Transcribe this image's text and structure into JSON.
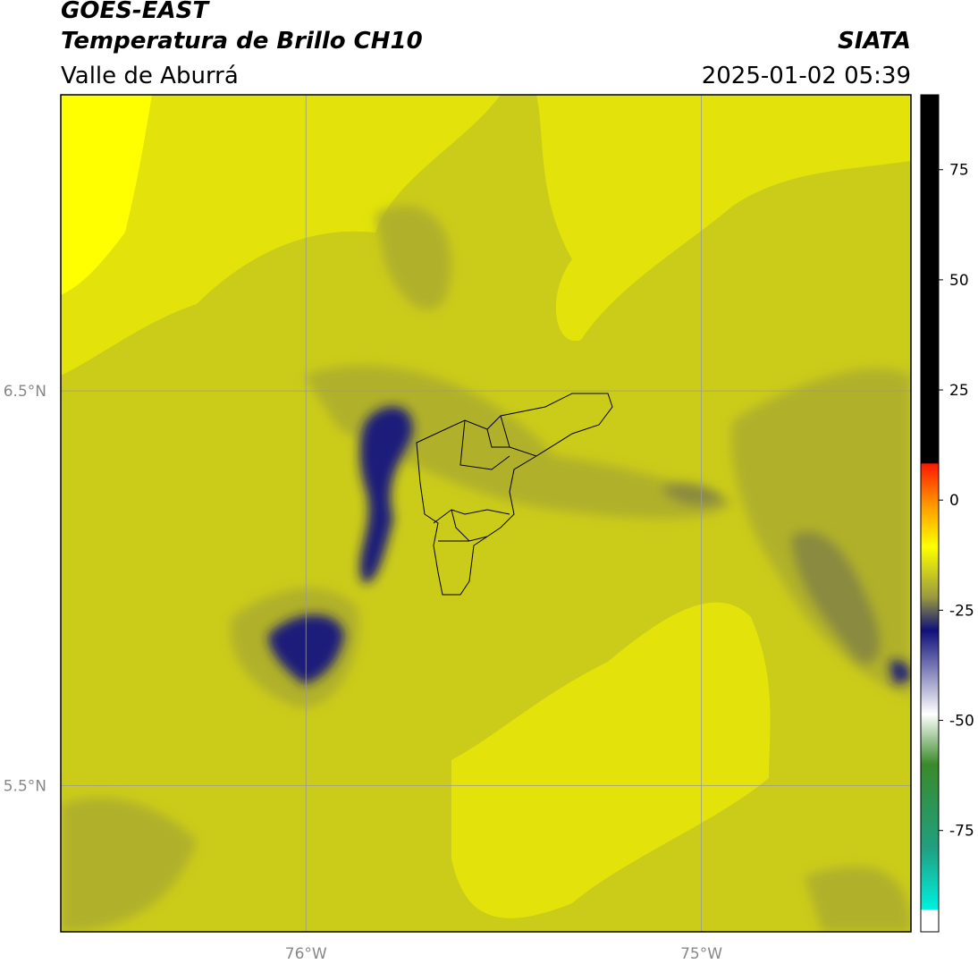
{
  "header": {
    "title": "GOES-EAST",
    "subtitle": "Temperatura de Brillo CH10",
    "region": "Valle de Aburrá",
    "source": "SIATA",
    "datetime": "2025-01-02 05:39"
  },
  "map": {
    "xlim": [
      -76.62,
      -74.47
    ],
    "ylim": [
      5.13,
      7.25
    ],
    "xticks": [
      {
        "value": -76,
        "label": "76°W"
      },
      {
        "value": -75,
        "label": "75°W"
      }
    ],
    "yticks": [
      {
        "value": 5.5,
        "label": "5.5°N"
      },
      {
        "value": 6.5,
        "label": "6.5°N"
      }
    ],
    "grid": true
  },
  "colorbar": {
    "lim": [
      -98,
      92
    ],
    "ticks": [
      -75,
      -50,
      -25,
      0,
      25,
      50,
      75
    ]
  }
}
